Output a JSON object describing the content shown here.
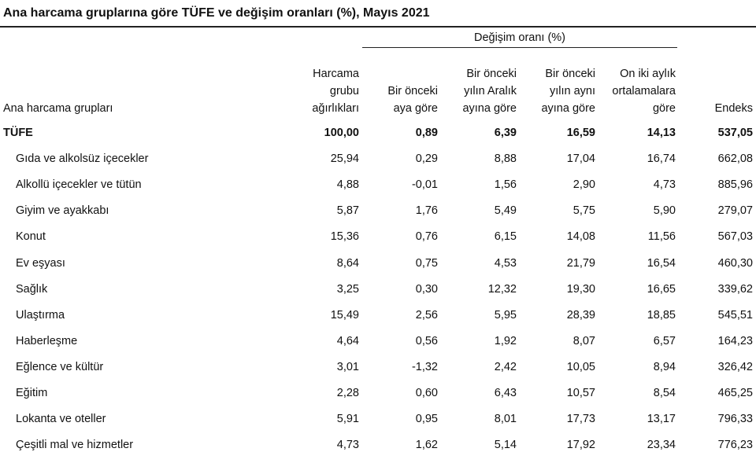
{
  "title": "Ana harcama gruplarına göre TÜFE ve değişim oranları (%), Mayıs 2021",
  "group_header": "Değişim oranı (%)",
  "columns": [
    {
      "lines": [
        "Ana harcama grupları"
      ]
    },
    {
      "lines": [
        "Harcama",
        "grubu",
        "ağırlıkları"
      ]
    },
    {
      "lines": [
        "Bir önceki",
        "aya göre"
      ]
    },
    {
      "lines": [
        "Bir önceki",
        "yılın Aralık",
        "ayına göre"
      ]
    },
    {
      "lines": [
        "Bir önceki",
        "yılın aynı",
        "ayına göre"
      ]
    },
    {
      "lines": [
        "On iki aylık",
        "ortalamalara",
        "göre"
      ]
    },
    {
      "lines": [
        "Endeks"
      ]
    }
  ],
  "rows": [
    [
      "TÜFE",
      "100,00",
      "0,89",
      "6,39",
      "16,59",
      "14,13",
      "537,05"
    ],
    [
      "Gıda ve alkolsüz içecekler",
      "25,94",
      "0,29",
      "8,88",
      "17,04",
      "16,74",
      "662,08"
    ],
    [
      "Alkollü içecekler ve tütün",
      "4,88",
      "-0,01",
      "1,56",
      "2,90",
      "4,73",
      "885,96"
    ],
    [
      "Giyim ve ayakkabı",
      "5,87",
      "1,76",
      "5,49",
      "5,75",
      "5,90",
      "279,07"
    ],
    [
      "Konut",
      "15,36",
      "0,76",
      "6,15",
      "14,08",
      "11,56",
      "567,03"
    ],
    [
      "Ev eşyası",
      "8,64",
      "0,75",
      "4,53",
      "21,79",
      "16,54",
      "460,30"
    ],
    [
      "Sağlık",
      "3,25",
      "0,30",
      "12,32",
      "19,30",
      "16,65",
      "339,62"
    ],
    [
      "Ulaştırma",
      "15,49",
      "2,56",
      "5,95",
      "28,39",
      "18,85",
      "545,51"
    ],
    [
      "Haberleşme",
      "4,64",
      "0,56",
      "1,92",
      "8,07",
      "6,57",
      "164,23"
    ],
    [
      "Eğlence ve kültür",
      "3,01",
      "-1,32",
      "2,42",
      "10,05",
      "8,94",
      "326,42"
    ],
    [
      "Eğitim",
      "2,28",
      "0,60",
      "6,43",
      "10,57",
      "8,54",
      "465,25"
    ],
    [
      "Lokanta ve oteller",
      "5,91",
      "0,95",
      "8,01",
      "17,73",
      "13,17",
      "796,33"
    ],
    [
      "Çeşitli mal ve hizmetler",
      "4,73",
      "1,62",
      "5,14",
      "17,92",
      "23,34",
      "776,23"
    ]
  ]
}
